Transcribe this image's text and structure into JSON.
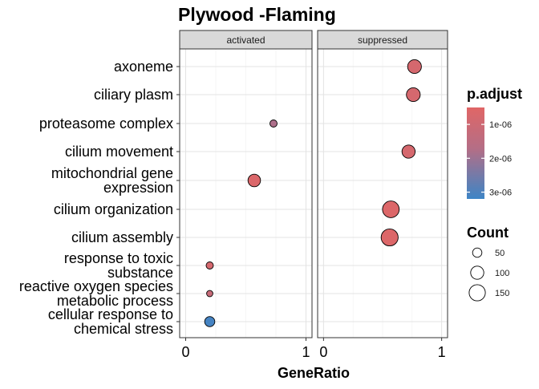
{
  "chart_data": {
    "type": "scatter",
    "title": "Plywood -Flaming",
    "xlabel": "GeneRatio",
    "ylabel": "",
    "xlim": [
      0,
      1
    ],
    "xticks": [
      0,
      1
    ],
    "grid": true,
    "categories": [
      "axoneme",
      "ciliary plasm",
      "proteasome complex",
      "cilium movement",
      "mitochondrial gene expression",
      "cilium organization",
      "cilium assembly",
      "response to toxic substance",
      "reactive oxygen species metabolic process",
      "cellular response to chemical stress"
    ],
    "category_lines": [
      [
        "axoneme"
      ],
      [
        "ciliary plasm"
      ],
      [
        "proteasome complex"
      ],
      [
        "cilium movement"
      ],
      [
        "mitochondrial gene",
        "expression"
      ],
      [
        "cilium organization"
      ],
      [
        "cilium assembly"
      ],
      [
        "response to toxic",
        "substance"
      ],
      [
        "reactive oxygen species",
        "metabolic process"
      ],
      [
        "cellular response to",
        "chemical stress"
      ]
    ],
    "panels": [
      {
        "name": "activated",
        "points": [
          {
            "category": "proteasome complex",
            "x": 0.73,
            "count": 30,
            "p_adjust": 1.8e-06
          },
          {
            "category": "mitochondrial gene expression",
            "x": 0.57,
            "count": 90,
            "p_adjust": 6.5e-07
          },
          {
            "category": "response to toxic substance",
            "x": 0.2,
            "count": 30,
            "p_adjust": 8e-07
          },
          {
            "category": "reactive oxygen species metabolic process",
            "x": 0.2,
            "count": 22,
            "p_adjust": 1.2e-06
          },
          {
            "category": "cellular response to chemical stress",
            "x": 0.2,
            "count": 58,
            "p_adjust": 3.1e-06
          }
        ]
      },
      {
        "name": "suppressed",
        "points": [
          {
            "category": "axoneme",
            "x": 0.77,
            "count": 110,
            "p_adjust": 8e-07
          },
          {
            "category": "ciliary plasm",
            "x": 0.76,
            "count": 110,
            "p_adjust": 8e-07
          },
          {
            "category": "cilium movement",
            "x": 0.72,
            "count": 100,
            "p_adjust": 8e-07
          },
          {
            "category": "cilium organization",
            "x": 0.57,
            "count": 160,
            "p_adjust": 6e-07
          },
          {
            "category": "cilium assembly",
            "x": 0.56,
            "count": 165,
            "p_adjust": 6e-07
          }
        ]
      }
    ],
    "legend_color": {
      "title": "p.adjust",
      "ticks": [
        {
          "label": "1e-06",
          "value": 1e-06
        },
        {
          "label": "2e-06",
          "value": 2e-06
        },
        {
          "label": "3e-06",
          "value": 3e-06
        }
      ],
      "range": [
        5e-07,
        3.2e-06
      ],
      "color_low": "#E06666",
      "color_high": "#3D85C6",
      "placement": "right"
    },
    "legend_size": {
      "title": "Count",
      "entries": [
        50,
        100,
        150
      ],
      "placement": "right"
    }
  }
}
